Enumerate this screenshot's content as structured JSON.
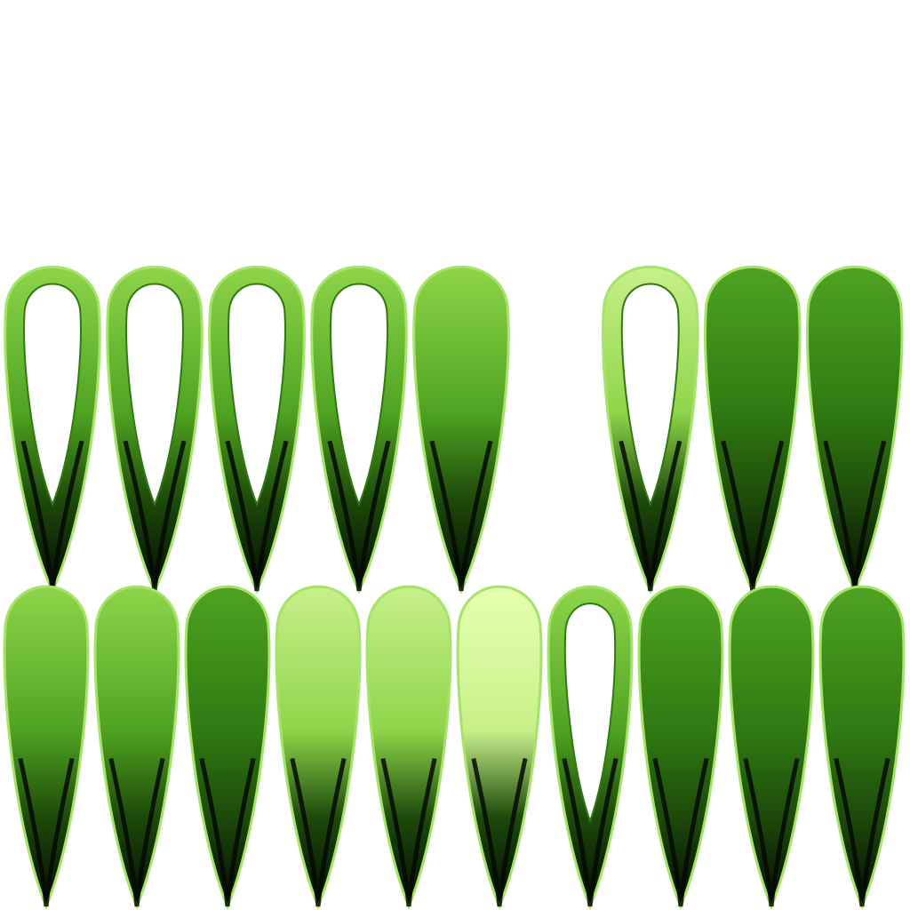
{
  "sheet": {
    "background": "#ffffff",
    "palette": {
      "leaf_dark": "#2f7a12",
      "leaf_mid": "#4fa321",
      "leaf_light": "#8ed54a",
      "leaf_pale": "#c8f08a",
      "base_black": "#050a02",
      "edge_highlight": "#a6e36a"
    },
    "rows": [
      {
        "name": "top-row",
        "leaves": [
          {
            "style": "hollow",
            "tone": "mid"
          },
          {
            "style": "hollow",
            "tone": "mid"
          },
          {
            "style": "hollow",
            "tone": "mid"
          },
          {
            "style": "hollow",
            "tone": "mid"
          },
          {
            "style": "solid",
            "tone": "mid"
          },
          {
            "style": "gap"
          },
          {
            "style": "hollow",
            "tone": "light"
          },
          {
            "style": "solid",
            "tone": "dark"
          },
          {
            "style": "solid",
            "tone": "dark"
          }
        ]
      },
      {
        "name": "bottom-row",
        "leaves": [
          {
            "style": "solid",
            "tone": "mid"
          },
          {
            "style": "solid",
            "tone": "mid"
          },
          {
            "style": "solid",
            "tone": "dark"
          },
          {
            "style": "solid",
            "tone": "light"
          },
          {
            "style": "solid",
            "tone": "light"
          },
          {
            "style": "solid",
            "tone": "pale"
          },
          {
            "style": "hollow",
            "tone": "mid"
          },
          {
            "style": "solid",
            "tone": "dark"
          },
          {
            "style": "solid",
            "tone": "dark"
          },
          {
            "style": "solid",
            "tone": "dark"
          }
        ]
      }
    ]
  }
}
